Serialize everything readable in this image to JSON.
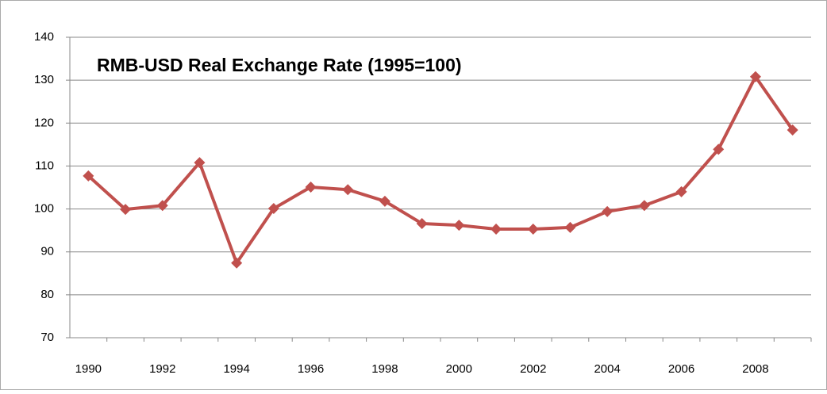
{
  "chart_data": {
    "type": "line",
    "title": "RMB-USD Real Exchange Rate (1995=100)",
    "categories": [
      "1990",
      null,
      "1992",
      null,
      "1994",
      null,
      "1996",
      null,
      "1998",
      null,
      "2000",
      null,
      "2002",
      null,
      "2004",
      null,
      "2006",
      null,
      "2008",
      null
    ],
    "series": [
      {
        "name": "RMB-USD Real Exchange Rate",
        "color": "#c0504d",
        "values": [
          107.7,
          99.9,
          100.8,
          110.8,
          87.4,
          100.1,
          105.1,
          104.5,
          101.8,
          96.6,
          96.2,
          95.3,
          95.3,
          95.7,
          99.4,
          100.8,
          104,
          113.9,
          130.8,
          118.4
        ]
      }
    ],
    "ylim": [
      70,
      140
    ],
    "yticks": [
      70,
      80,
      90,
      100,
      110,
      120,
      130,
      140
    ],
    "grid": true
  }
}
